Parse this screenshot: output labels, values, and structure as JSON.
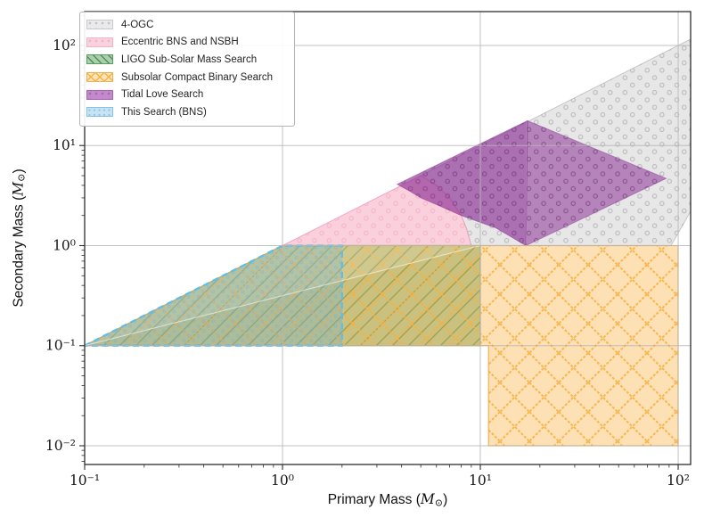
{
  "figure": {
    "background": "#ffffff",
    "frame_color": "#2e2e2e",
    "grid_color": "#b7b7b7"
  },
  "axes": {
    "xlabel": {
      "text": "Primary Mass ",
      "paren_open": "(",
      "symbol": "M",
      "subscript": "⊙",
      "paren_close": ")"
    },
    "ylabel": {
      "text": "Secondary Mass ",
      "paren_open": "(",
      "symbol": "M",
      "subscript": "⊙",
      "paren_close": ")"
    }
  },
  "legend": {
    "items": [
      {
        "id": "ogc4",
        "label": "4-OGC"
      },
      {
        "id": "eccentric",
        "label": "Eccentric BNS and NSBH"
      },
      {
        "id": "ligo",
        "label": "LIGO Sub-Solar Mass Search"
      },
      {
        "id": "subsolar",
        "label": "Subsolar Compact Binary Search"
      },
      {
        "id": "tidal",
        "label": "Tidal Love Search"
      },
      {
        "id": "this",
        "label": "This Search (BNS)"
      }
    ]
  },
  "chart_data": {
    "type": "area",
    "xscale": "log",
    "yscale": "log",
    "xlim": [
      0.1,
      115.6
    ],
    "ylim": [
      0.0065,
      218
    ],
    "grid": true,
    "legend_position": "upper-left",
    "x_ticks": [
      {
        "v": 0.1,
        "label": "10⁻¹"
      },
      {
        "v": 1,
        "label": "10⁰"
      },
      {
        "v": 10,
        "label": "10¹"
      },
      {
        "v": 100,
        "label": "10²"
      }
    ],
    "y_ticks": [
      {
        "v": 0.01,
        "label": "10⁻²"
      },
      {
        "v": 0.1,
        "label": "10⁻¹"
      },
      {
        "v": 1,
        "label": "10⁰"
      },
      {
        "v": 10,
        "label": "10¹"
      },
      {
        "v": 100,
        "label": "10²"
      }
    ],
    "regions": [
      {
        "id": "ogc4",
        "legend": "4-OGC",
        "fill": "rgba(198,198,201,0.42)",
        "edge": "rgba(162,162,166,0.55)",
        "edge_width": 1,
        "hatch": "dots",
        "hatch_color": "rgba(112,112,118,0.38)",
        "points": [
          [
            5,
            5
          ],
          [
            115.6,
            115.6
          ],
          [
            115.6,
            2.2
          ],
          [
            92,
            1.0
          ],
          [
            9,
            1.0
          ],
          [
            8.5,
            1.5
          ],
          [
            8,
            2
          ],
          [
            7,
            3
          ],
          [
            6,
            4
          ]
        ]
      },
      {
        "id": "eccentric",
        "legend": "Eccentric BNS and NSBH",
        "fill": "rgba(243,150,178,0.45)",
        "edge": "rgba(241,158,186,0.85)",
        "edge_width": 1,
        "hatch": "dots",
        "hatch_color": "rgba(232,108,150,0.28)",
        "points": [
          [
            1,
            1
          ],
          [
            5,
            5
          ],
          [
            6,
            4
          ],
          [
            7,
            3
          ],
          [
            8,
            2
          ],
          [
            8.5,
            1.5
          ],
          [
            9,
            1
          ]
        ]
      },
      {
        "id": "tidal_left",
        "legend": "Tidal Love Search",
        "fill": "rgba(132,33,142,0.60)",
        "edge": "rgba(128,40,140,0.45)",
        "edge_width": 1,
        "hatch": "dots",
        "hatch_color": "rgba(96,22,104,0.32)",
        "points": [
          [
            3.8,
            4.1
          ],
          [
            17.3,
            17.7
          ],
          [
            17,
            1
          ],
          [
            12,
            1.5
          ],
          [
            8,
            2
          ],
          [
            6.2,
            2.5
          ],
          [
            5,
            3
          ],
          [
            4.4,
            3.5
          ]
        ]
      },
      {
        "id": "tidal_right",
        "legend": "Tidal Love Search",
        "fill": "rgba(132,33,142,0.50)",
        "edge": "rgba(128,40,140,0.40)",
        "edge_width": 1,
        "hatch": "dots",
        "hatch_color": "rgba(96,22,104,0.30)",
        "points": [
          [
            17.3,
            17.7
          ],
          [
            87,
            4.7
          ],
          [
            17,
            1
          ]
        ]
      },
      {
        "id": "ligo",
        "legend": "LIGO Sub-Solar Mass Search",
        "fill": "rgba(67,142,60,0.45)",
        "edge": "rgba(45,108,52,0.6)",
        "edge_width": 1.2,
        "hatch": "diag",
        "hatch_color": "rgba(40,105,48,0.55)",
        "points": [
          [
            0.1,
            0.1
          ],
          [
            1,
            1
          ],
          [
            10,
            1
          ],
          [
            10,
            0.1
          ]
        ]
      },
      {
        "id": "subsolar",
        "legend": "Subsolar Compact Binary Search",
        "fill": "rgba(250,178,68,0.40)",
        "edge": "rgba(238,162,55,0.8)",
        "edge_width": 1.2,
        "hatch": "cross",
        "hatch_color": "rgba(246,176,66,0.85)",
        "points": [
          [
            0.1,
            0.1
          ],
          [
            1,
            1
          ],
          [
            100,
            1
          ],
          [
            100,
            0.01
          ],
          [
            11,
            0.01
          ],
          [
            11,
            0.1
          ]
        ]
      },
      {
        "id": "upper_lighten",
        "legend": "",
        "fill": "rgba(255,255,255,0.13)",
        "edge": "none",
        "edge_width": 0,
        "hatch": "",
        "hatch_color": "",
        "points": [
          [
            0.1,
            0.1
          ],
          [
            1,
            1
          ],
          [
            10,
            1
          ]
        ]
      },
      {
        "id": "this",
        "legend": "This Search (BNS)",
        "fill": "rgba(100,180,225,0.28)",
        "edge": "#5fbde9",
        "edge_width": 2.3,
        "dash": "7 4.5",
        "hatch": "dots_fine",
        "hatch_color": "rgba(95,165,215,0.25)",
        "points": [
          [
            0.1,
            0.1
          ],
          [
            1,
            1
          ],
          [
            2,
            1
          ],
          [
            2,
            0.1
          ]
        ]
      }
    ],
    "lines": [
      {
        "id": "green-seam",
        "points": [
          [
            0.1,
            0.1
          ],
          [
            10,
            1
          ]
        ],
        "color": "rgba(255,255,255,0.55)",
        "width": 1.1
      },
      {
        "id": "tidal-seam",
        "points": [
          [
            17.15,
            17.5
          ],
          [
            17.05,
            1.05
          ]
        ],
        "color": "rgba(255,255,255,0.22)",
        "width": 1
      }
    ]
  }
}
